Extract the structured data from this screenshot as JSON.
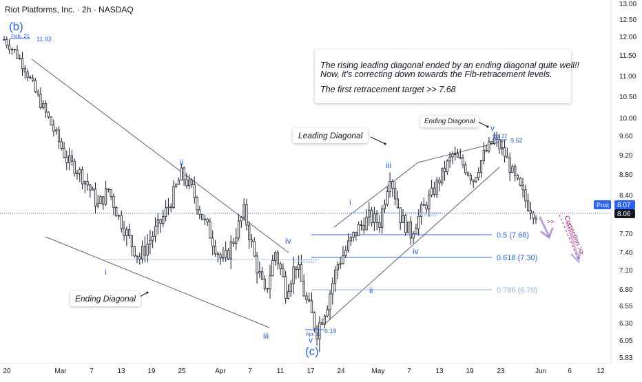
{
  "chart_data": {
    "type": "candlestick",
    "title": "Riot Platforms, Inc. · 2h · NASDAQ",
    "y_ticks": [
      "13.00",
      "12.50",
      "12.00",
      "11.50",
      "11.00",
      "10.50",
      "10.00",
      "9.60",
      "9.20",
      "8.80",
      "8.40",
      "8.06",
      "7.70",
      "7.40",
      "7.10",
      "6.80",
      "6.55",
      "6.30",
      "6.05",
      "5.83"
    ],
    "x_ticks": [
      "20",
      "Mar",
      "7",
      "13",
      "19",
      "25",
      "Apr",
      "7",
      "11",
      "17",
      "24",
      "May",
      "7",
      "13",
      "19",
      "23",
      "Jun",
      "6",
      "12"
    ],
    "price_badges": [
      {
        "label": "Post",
        "value": "8.07",
        "color": "#2962ff"
      },
      {
        "label": "",
        "value": "8.06",
        "color": "#131722"
      }
    ],
    "fib_levels": [
      {
        "label": "0.5 (7.68)",
        "value": 7.68,
        "color": "#2962ff"
      },
      {
        "label": "0.618 (7.30)",
        "value": 7.3,
        "color": "#2962ff"
      },
      {
        "label": "0.786 (6.79)",
        "value": 6.79,
        "color": "#90b4e8"
      }
    ],
    "series_close": [
      11.92,
      11.6,
      11.2,
      10.6,
      10.1,
      9.6,
      9.1,
      8.9,
      8.6,
      8.2,
      8.5,
      8.0,
      7.6,
      7.3,
      7.6,
      7.9,
      8.3,
      8.8,
      8.5,
      8.0,
      7.6,
      7.2,
      7.6,
      8.1,
      7.3,
      6.7,
      7.4,
      6.8,
      7.2,
      6.6,
      6.19,
      6.6,
      7.2,
      7.5,
      7.8,
      8.0,
      7.9,
      8.8,
      8.0,
      7.7,
      8.1,
      8.4,
      8.8,
      9.2,
      9.0,
      8.7,
      9.2,
      9.52,
      9.2,
      8.7,
      8.3,
      8.06
    ],
    "annotations": {
      "b_label": "(b)",
      "c_label": "(c)",
      "feb_tag": "Feb. 21",
      "feb_value": "11.92",
      "apr_tag": "Apr. 17",
      "apr_value": "6.19",
      "ma_tag": "Ma. 22",
      "ma_value": "9.52",
      "waves_left": [
        "i",
        "ii",
        "iii",
        "iv",
        "v"
      ],
      "waves_right": [
        "i",
        "ii",
        "iii",
        "iv",
        "v"
      ],
      "overlap_1": "Overlap",
      "overlap_2": "Overlap",
      "correction": "Correction >>",
      "ending_diagonal_left": "Ending Diagonal",
      "leading_diagonal": "Leading Diagonal",
      "ending_diagonal_right": "Ending Diagonal"
    },
    "note_lines": [
      "The rising leading diagonal ended by an ending diagonal quite well!!",
      " Now, it's correcting down towards the Fib-retracement levels.",
      "The first retracement target >> 7.68"
    ]
  }
}
